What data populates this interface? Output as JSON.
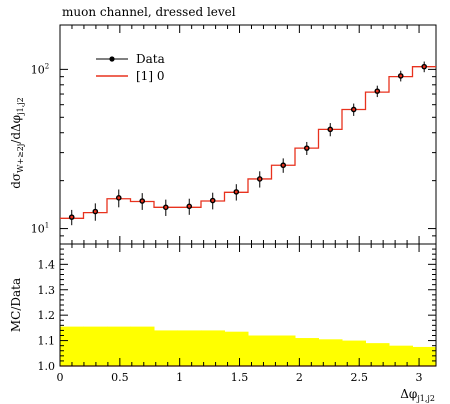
{
  "chart_data": [
    {
      "type": "line",
      "title": "muon channel, dressed level",
      "ylabel_main": "dσ",
      "ylabel_sub": "W+≥2j",
      "ylabel_mid": "/dΔφ",
      "ylabel_sub2": "j1,j2",
      "yscale": "log",
      "ylim": [
        8,
        190
      ],
      "xlim": [
        0,
        3.14159
      ],
      "ytick_labels": [
        "10",
        "10"
      ],
      "ytick_exp": [
        "1",
        "2"
      ],
      "legend": {
        "data_label": "Data",
        "mc_label": "[1] 0",
        "position": "top-left"
      },
      "colors": {
        "mc": "#e8321e",
        "data_point": "#e8321e",
        "data": "#000000"
      },
      "bin_edges": [
        0,
        0.1963,
        0.3927,
        0.589,
        0.7854,
        0.9817,
        1.1781,
        1.3744,
        1.5708,
        1.7671,
        1.9635,
        2.1598,
        2.3562,
        2.5525,
        2.7489,
        2.9452,
        3.1416
      ],
      "data": [
        {
          "x": 0.098,
          "y": 11.8,
          "err": 1.3
        },
        {
          "x": 0.295,
          "y": 12.8,
          "err": 1.6
        },
        {
          "x": 0.491,
          "y": 15.6,
          "err": 2.0
        },
        {
          "x": 0.687,
          "y": 14.9,
          "err": 1.8
        },
        {
          "x": 0.884,
          "y": 13.6,
          "err": 1.6
        },
        {
          "x": 1.08,
          "y": 13.8,
          "err": 1.6
        },
        {
          "x": 1.276,
          "y": 15.0,
          "err": 1.8
        },
        {
          "x": 1.473,
          "y": 17.0,
          "err": 2.0
        },
        {
          "x": 1.669,
          "y": 20.5,
          "err": 2.4
        },
        {
          "x": 1.865,
          "y": 25.0,
          "err": 2.6
        },
        {
          "x": 2.062,
          "y": 32.0,
          "err": 3.0
        },
        {
          "x": 2.258,
          "y": 42.0,
          "err": 4.0
        },
        {
          "x": 2.454,
          "y": 56.0,
          "err": 5.0
        },
        {
          "x": 2.651,
          "y": 73.0,
          "err": 6.0
        },
        {
          "x": 2.847,
          "y": 91.0,
          "err": 7.0
        },
        {
          "x": 3.043,
          "y": 104.0,
          "err": 8.0
        }
      ],
      "mc": [
        11.6,
        12.6,
        15.4,
        14.8,
        13.6,
        13.6,
        14.9,
        16.9,
        20.5,
        25.0,
        32.0,
        42.0,
        56.0,
        72.0,
        90.0,
        104.0
      ]
    },
    {
      "type": "area",
      "ylabel": "MC/Data",
      "xlabel": "Δφ",
      "xlabel_sub": "j1,j2",
      "ylim": [
        1.0,
        1.48
      ],
      "xticks": [
        0,
        0.5,
        1,
        1.5,
        2,
        2.5,
        3
      ],
      "xtick_labels": [
        "0",
        "0.5",
        "1",
        "1.5",
        "2",
        "2.5",
        "3"
      ],
      "yticks": [
        1.0,
        1.1,
        1.2,
        1.3,
        1.4
      ],
      "ytick_labels": [
        "1.0",
        "1.1",
        "1.2",
        "1.3",
        "1.4"
      ],
      "band_color": "#ffff00",
      "band_upper": [
        1.155,
        1.155,
        1.155,
        1.155,
        1.14,
        1.14,
        1.14,
        1.135,
        1.12,
        1.12,
        1.11,
        1.105,
        1.1,
        1.09,
        1.08,
        1.075
      ],
      "ratio": [
        1.0,
        1.0,
        1.0,
        1.0,
        1.0,
        1.0,
        1.0,
        1.0,
        1.0,
        1.0,
        1.0,
        1.0,
        1.0,
        1.0,
        1.0,
        1.0
      ]
    }
  ]
}
